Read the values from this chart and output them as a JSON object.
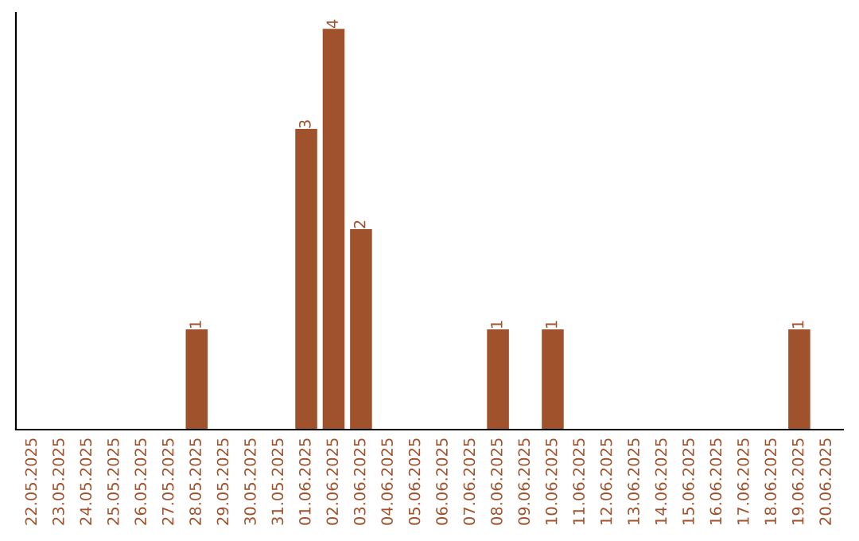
{
  "chart_data": {
    "type": "bar",
    "categories": [
      "22.05.2025",
      "23.05.2025",
      "24.05.2025",
      "25.05.2025",
      "26.05.2025",
      "27.05.2025",
      "28.05.2025",
      "29.05.2025",
      "30.05.2025",
      "31.05.2025",
      "01.06.2025",
      "02.06.2025",
      "03.06.2025",
      "04.06.2025",
      "05.06.2025",
      "06.06.2025",
      "07.06.2025",
      "08.06.2025",
      "09.06.2025",
      "10.06.2025",
      "11.06.2025",
      "12.06.2025",
      "13.06.2025",
      "14.06.2025",
      "15.06.2025",
      "16.06.2025",
      "17.06.2025",
      "18.06.2025",
      "19.06.2025",
      "20.06.2025"
    ],
    "values": [
      0,
      0,
      0,
      0,
      0,
      0,
      1,
      0,
      0,
      0,
      3,
      4,
      2,
      0,
      0,
      0,
      0,
      1,
      0,
      1,
      0,
      0,
      0,
      0,
      0,
      0,
      0,
      0,
      1,
      0
    ],
    "value_labels": [
      null,
      null,
      null,
      null,
      null,
      null,
      "1",
      null,
      null,
      null,
      "3",
      "4",
      "2",
      null,
      null,
      null,
      null,
      "1",
      null,
      "1",
      null,
      null,
      null,
      null,
      null,
      null,
      null,
      null,
      "1",
      null
    ],
    "color": "#a0522d",
    "tick_labels": "x",
    "grid": false,
    "legend": false
  }
}
